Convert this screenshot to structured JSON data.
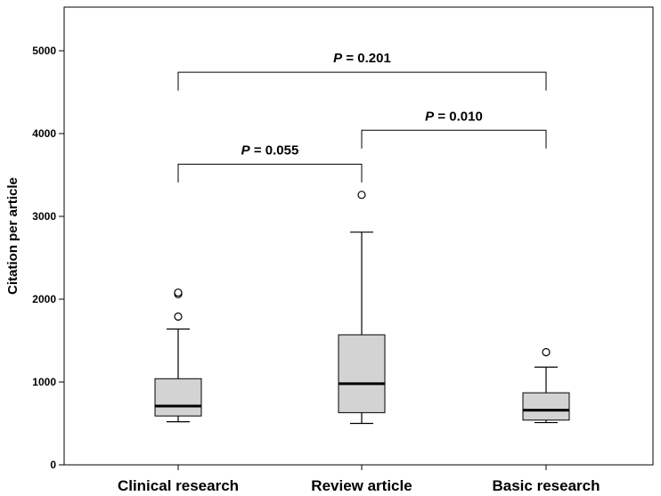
{
  "chart_data": {
    "type": "box",
    "title": "",
    "xlabel": "",
    "ylabel": "Citation per article",
    "ylim": [
      0,
      5200
    ],
    "yticks": [
      0,
      1000,
      2000,
      3000,
      4000,
      5000
    ],
    "grid": false,
    "categories": [
      "Clinical research",
      "Review article",
      "Basic research"
    ],
    "boxes": [
      {
        "category": "Clinical research",
        "whisker_low": 520,
        "q1": 590,
        "median": 710,
        "q3": 1040,
        "whisker_high": 1640,
        "outliers": [
          1790,
          2060,
          2080
        ]
      },
      {
        "category": "Review article",
        "whisker_low": 500,
        "q1": 630,
        "median": 980,
        "q3": 1570,
        "whisker_high": 2810,
        "outliers": [
          3260
        ]
      },
      {
        "category": "Basic research",
        "whisker_low": 510,
        "q1": 540,
        "median": 660,
        "q3": 870,
        "whisker_high": 1180,
        "outliers": [
          1360
        ]
      }
    ],
    "comparisons": [
      {
        "from": 0,
        "to": 2,
        "level": 4740,
        "p_prefix": "P",
        "p_value": "= 0.201"
      },
      {
        "from": 1,
        "to": 2,
        "level": 4040,
        "p_prefix": "P",
        "p_value": "= 0.010"
      },
      {
        "from": 0,
        "to": 1,
        "level": 3630,
        "p_prefix": "P",
        "p_value": "= 0.055"
      }
    ]
  }
}
